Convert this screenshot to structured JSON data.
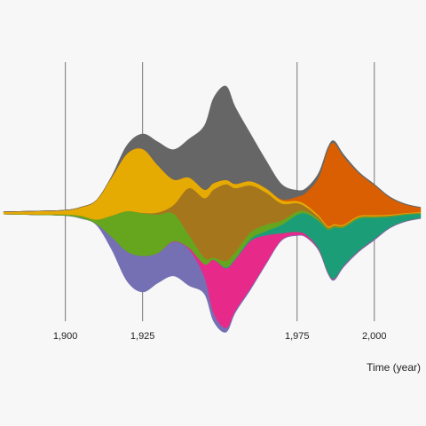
{
  "chart_data": {
    "type": "area",
    "subtype": "streamgraph",
    "xlabel": "Time (year)",
    "xlim": [
      1880,
      2015
    ],
    "ylim": [
      -60,
      60
    ],
    "x_ticks": [
      {
        "value": 1900,
        "label": "1,900"
      },
      {
        "value": 1925,
        "label": "1,925"
      },
      {
        "value": 1975,
        "label": "1,975"
      },
      {
        "value": 2000,
        "label": "2,000"
      }
    ],
    "grid": "vertical",
    "legend": "none",
    "x": [
      1880,
      1890,
      1900,
      1905,
      1910,
      1915,
      1920,
      1925,
      1930,
      1935,
      1940,
      1945,
      1948,
      1952,
      1955,
      1960,
      1965,
      1970,
      1975,
      1978,
      1982,
      1985,
      1987,
      1990,
      1995,
      2000,
      2005,
      2010,
      2015
    ],
    "series": [
      {
        "color": "#7570b3",
        "values": [
          0,
          0,
          0.1,
          0.3,
          0.5,
          6,
          14,
          17,
          14,
          16,
          17,
          8,
          4,
          2,
          1,
          0.8,
          0.5,
          0.4,
          0.3,
          0.3,
          0.4,
          0.5,
          0.5,
          0.5,
          0.4,
          0.4,
          0.3,
          0.2,
          0.2
        ]
      },
      {
        "color": "#e7298a",
        "values": [
          0,
          0,
          0,
          0,
          0,
          0,
          0,
          0,
          0.1,
          0.3,
          0.8,
          6,
          25,
          28,
          24,
          22,
          13,
          3,
          1.5,
          1,
          0.5,
          0.3,
          0.3,
          0.2,
          0.2,
          0.2,
          0.1,
          0.1,
          0.1
        ]
      },
      {
        "color": "#1b9e77",
        "values": [
          0,
          0,
          0,
          0,
          0,
          0,
          0,
          0,
          0,
          0,
          0,
          0,
          0,
          0.5,
          0.5,
          1,
          2,
          4,
          8,
          10,
          13,
          20,
          24,
          18,
          15,
          10,
          5,
          3,
          2
        ]
      },
      {
        "color": "#66a61e",
        "values": [
          0.1,
          0.2,
          0.5,
          1,
          2,
          10,
          19,
          20,
          18,
          13,
          6,
          3,
          1,
          3,
          3,
          3,
          3,
          2,
          1.5,
          1,
          0.8,
          0.5,
          0.5,
          0.5,
          0.5,
          0.4,
          0.3,
          0.3,
          0.3
        ]
      },
      {
        "color": "#a6761d",
        "values": [
          0,
          0,
          0,
          0,
          0,
          0,
          0,
          0.2,
          1,
          4,
          22,
          28,
          32,
          36,
          30,
          22,
          15,
          8,
          4,
          2,
          1,
          0.5,
          0.5,
          0.4,
          0.3,
          0.3,
          0.3,
          0.2,
          0.2
        ]
      },
      {
        "color": "#e6ab02",
        "values": [
          1,
          1.5,
          2,
          4,
          9,
          18,
          27,
          30,
          22,
          12,
          5,
          4,
          3,
          2,
          2,
          2,
          2,
          1.5,
          1,
          1,
          0.8,
          0.6,
          0.6,
          0.5,
          0.5,
          0.5,
          0.4,
          0.3,
          0.3
        ]
      },
      {
        "color": "#d95f02",
        "values": [
          0,
          0,
          0,
          0,
          0,
          0,
          0,
          0,
          0,
          0,
          0,
          0,
          0,
          0,
          0,
          0,
          0,
          0.5,
          2,
          6,
          18,
          36,
          38,
          32,
          20,
          14,
          8,
          4,
          2
        ]
      },
      {
        "color": "#666666",
        "values": [
          0,
          0,
          0,
          0,
          0,
          0.5,
          4,
          7,
          11,
          14,
          18,
          30,
          40,
          44,
          36,
          22,
          13,
          7,
          3,
          2,
          2,
          1,
          1,
          1,
          0.6,
          0.5,
          0.4,
          0.3,
          0.2
        ]
      }
    ]
  }
}
